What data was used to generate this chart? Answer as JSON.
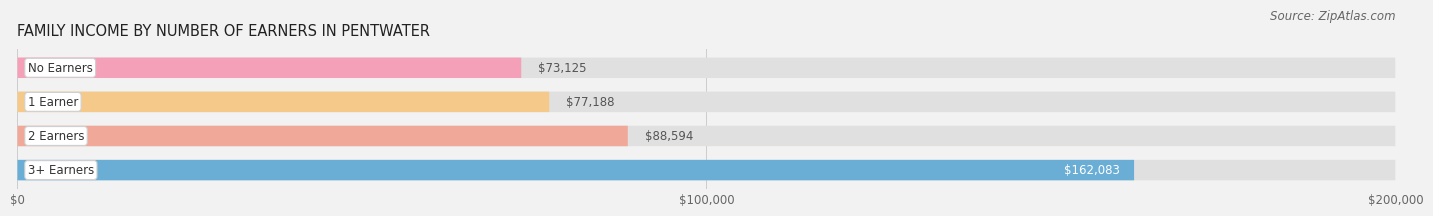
{
  "title": "FAMILY INCOME BY NUMBER OF EARNERS IN PENTWATER",
  "source": "Source: ZipAtlas.com",
  "categories": [
    "No Earners",
    "1 Earner",
    "2 Earners",
    "3+ Earners"
  ],
  "values": [
    73125,
    77188,
    88594,
    162083
  ],
  "bar_colors": [
    "#f4a0b8",
    "#f5c98a",
    "#f0a898",
    "#6aaed6"
  ],
  "label_colors": [
    "#555555",
    "#555555",
    "#555555",
    "#ffffff"
  ],
  "value_inside": [
    false,
    false,
    false,
    true
  ],
  "xlim": [
    0,
    200000
  ],
  "xticks": [
    0,
    100000,
    200000
  ],
  "xtick_labels": [
    "$0",
    "$100,000",
    "$200,000"
  ],
  "background_color": "#f2f2f2",
  "bar_bg_color": "#e0e0e0",
  "title_fontsize": 10.5,
  "source_fontsize": 8.5,
  "label_fontsize": 8.5,
  "category_fontsize": 8.5
}
